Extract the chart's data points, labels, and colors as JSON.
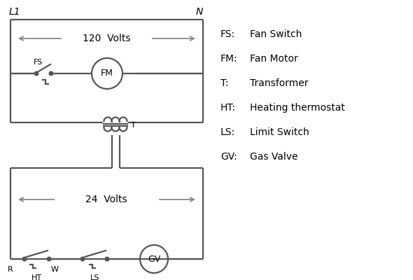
{
  "bg_color": "#ffffff",
  "line_color": "#555555",
  "text_color": "#000000",
  "legend_items": [
    [
      "FS:",
      "Fan Switch"
    ],
    [
      "FM:",
      "Fan Motor"
    ],
    [
      "T:",
      "Transformer"
    ],
    [
      "HT:",
      "Heating thermostat"
    ],
    [
      "LS:",
      "Limit Switch"
    ],
    [
      "GV:",
      "Gas Valve"
    ]
  ],
  "lw": 1.6,
  "arrow_color": "#888888"
}
